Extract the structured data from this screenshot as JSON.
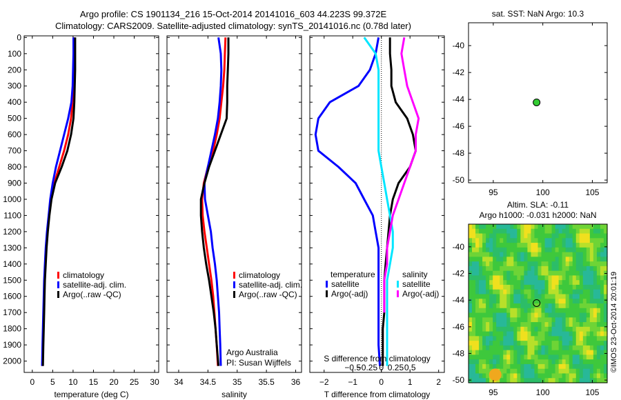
{
  "header": {
    "line1": "Argo profile: CS 1901134_216 15-Oct-2014 20141016_603 44.223S 99.372E",
    "line2": "Climatology: CARS2009. Satellite-adjusted climatology: synTS_20141016.nc (0.78d later)"
  },
  "colors": {
    "climatology": "#ff0000",
    "satellite": "#0000ff",
    "argo": "#000000",
    "sat_salinity": "#00e6ff",
    "argo_adj_salinity": "#ff00ff"
  },
  "chart_data": [
    {
      "type": "line",
      "id": "temperature",
      "xlabel": "temperature (deg C)",
      "xlim": [
        -2,
        31
      ],
      "ylim": [
        2070,
        -10
      ],
      "xticks": [
        0,
        5,
        10,
        15,
        20,
        25,
        30
      ],
      "xtick_labels": [
        "0",
        "5",
        "10",
        "15",
        "20",
        "25",
        "30"
      ],
      "yticks": [
        0,
        100,
        200,
        300,
        400,
        500,
        600,
        700,
        800,
        900,
        1000,
        1100,
        1200,
        1300,
        1400,
        1500,
        1600,
        1700,
        1800,
        1900,
        2000
      ],
      "legend": [
        "climatology",
        "satellite-adj. clim.",
        "Argo(..raw -QC)"
      ],
      "series": [
        {
          "name": "climatology",
          "color": "#ff0000",
          "x": [
            10.2,
            10.2,
            10.1,
            10,
            9.9,
            9.5,
            8.8,
            7.8,
            6.6,
            5.4,
            4.6,
            4.1,
            3.7,
            3.4,
            3.2,
            3,
            2.9,
            2.8,
            2.7,
            2.6,
            2.5
          ],
          "y": [
            0,
            100,
            200,
            300,
            400,
            500,
            600,
            700,
            800,
            900,
            1000,
            1100,
            1200,
            1300,
            1400,
            1500,
            1600,
            1700,
            1800,
            1900,
            2030
          ]
        },
        {
          "name": "satellite-adj. clim.",
          "color": "#0000ff",
          "x": [
            10.1,
            10.1,
            10,
            9.9,
            9.6,
            8.8,
            7.8,
            6.8,
            5.8,
            5,
            4.4,
            4,
            3.6,
            3.3,
            3.1,
            2.9,
            2.8,
            2.7,
            2.6,
            2.5,
            2.4
          ],
          "y": [
            0,
            100,
            200,
            300,
            400,
            500,
            600,
            700,
            800,
            900,
            1000,
            1100,
            1200,
            1300,
            1400,
            1500,
            1600,
            1700,
            1800,
            1900,
            2030
          ]
        },
        {
          "name": "Argo(..raw -QC)",
          "color": "#000000",
          "x": [
            10.5,
            10.5,
            10.5,
            10.4,
            10.3,
            10.1,
            9.5,
            8.6,
            7.2,
            5.6,
            4.7,
            4.2,
            3.8,
            3.5,
            3.3,
            3.1,
            3,
            2.9,
            2.8,
            2.7,
            2.6
          ],
          "y": [
            0,
            100,
            200,
            300,
            400,
            500,
            600,
            700,
            800,
            900,
            1000,
            1100,
            1200,
            1300,
            1400,
            1500,
            1600,
            1700,
            1800,
            1900,
            2030
          ]
        }
      ]
    },
    {
      "type": "line",
      "id": "salinity",
      "xlabel": "salinity",
      "xlim": [
        33.8,
        36.1
      ],
      "ylim": [
        2070,
        -10
      ],
      "xticks": [
        34,
        34.5,
        35,
        35.5,
        36
      ],
      "xtick_labels": [
        "34",
        "34.5",
        "35",
        "35.5",
        "36"
      ],
      "yticks": [
        0,
        100,
        200,
        300,
        400,
        500,
        600,
        700,
        800,
        900,
        1000,
        1100,
        1200,
        1300,
        1400,
        1500,
        1600,
        1700,
        1800,
        1900,
        2000
      ],
      "legend": [
        "climatology",
        "satellite-adj. clim.",
        "Argo(..raw -QC)"
      ],
      "annotation": [
        "Argo Australia",
        "PI: Susan Wijffels"
      ],
      "series": [
        {
          "name": "climatology",
          "color": "#ff0000",
          "x": [
            34.8,
            34.79,
            34.78,
            34.76,
            34.73,
            34.7,
            34.65,
            34.59,
            34.5,
            34.43,
            34.4,
            34.41,
            34.44,
            34.48,
            34.52,
            34.56,
            34.59,
            34.61,
            34.63,
            34.65,
            34.67
          ],
          "y": [
            0,
            100,
            200,
            300,
            400,
            500,
            600,
            700,
            800,
            900,
            1000,
            1100,
            1200,
            1300,
            1400,
            1500,
            1600,
            1700,
            1800,
            1900,
            2030
          ]
        },
        {
          "name": "satellite-adj. clim.",
          "color": "#0000ff",
          "x": [
            34.68,
            34.72,
            34.73,
            34.72,
            34.7,
            34.67,
            34.62,
            34.56,
            34.5,
            34.44,
            34.45,
            34.5,
            34.55,
            34.58,
            34.62,
            34.65,
            34.67,
            34.69,
            34.7,
            34.71,
            34.72
          ],
          "y": [
            0,
            100,
            200,
            300,
            400,
            500,
            600,
            700,
            800,
            900,
            1000,
            1100,
            1200,
            1300,
            1400,
            1500,
            1600,
            1700,
            1800,
            1900,
            2030
          ]
        },
        {
          "name": "Argo(..raw -QC)",
          "color": "#000000",
          "x": [
            34.85,
            34.85,
            34.84,
            34.83,
            34.83,
            34.82,
            34.72,
            34.62,
            34.52,
            34.44,
            34.38,
            34.38,
            34.4,
            34.43,
            34.47,
            34.52,
            34.56,
            34.6,
            34.63,
            34.65,
            34.68
          ],
          "y": [
            0,
            100,
            200,
            300,
            400,
            500,
            600,
            700,
            800,
            900,
            1000,
            1100,
            1200,
            1300,
            1400,
            1500,
            1600,
            1700,
            1800,
            1900,
            2030
          ]
        }
      ]
    },
    {
      "type": "line",
      "id": "differences",
      "xlabel": "T difference from climatology",
      "xlabel_top": "S difference from climatology",
      "xlim": [
        -2.5,
        2.2
      ],
      "ylim": [
        2070,
        -10
      ],
      "xticks": [
        -2,
        -1,
        0,
        1,
        2
      ],
      "xtick_labels": [
        "−2",
        "−1",
        "0",
        "1",
        "2"
      ],
      "sticks": [
        -0.5,
        -0.25,
        0,
        0.25,
        0.5
      ],
      "stick_labels": [
        "−0.5",
        "−0.25",
        "0",
        "0.25",
        "0.5"
      ],
      "yticks": [
        0,
        100,
        200,
        300,
        400,
        500,
        600,
        700,
        800,
        900,
        1000,
        1100,
        1200,
        1300,
        1400,
        1500,
        1600,
        1700,
        1800,
        1900,
        2000
      ],
      "legend_titles": [
        "temperature",
        "salinity"
      ],
      "legend": [
        "satellite",
        "Argo(-adj)",
        "satellite",
        "Argo(-adj)"
      ],
      "series": [
        {
          "name": "temperature satellite",
          "color": "#0000ff",
          "x": [
            -0.1,
            -0.2,
            -0.4,
            -0.8,
            -1.8,
            -2.2,
            -2.3,
            -2.2,
            -1.5,
            -0.9,
            -0.6,
            -0.3,
            -0.2,
            -0.1,
            -0.1,
            -0.1,
            -0.1,
            -0.1,
            -0.1,
            -0.1,
            -0.05
          ],
          "y": [
            0,
            100,
            200,
            300,
            400,
            500,
            600,
            700,
            800,
            900,
            1000,
            1100,
            1200,
            1300,
            1400,
            1500,
            1600,
            1700,
            1800,
            1900,
            2030
          ]
        },
        {
          "name": "temperature Argo(-adj)",
          "color": "#000000",
          "x": [
            0.3,
            0.3,
            0.35,
            0.35,
            0.5,
            0.9,
            1.1,
            1.2,
            1.0,
            0.6,
            0.4,
            0.3,
            0.25,
            0.2,
            0.15,
            0.1,
            0.1,
            0.1,
            0.05,
            0.05,
            0.05
          ],
          "y": [
            0,
            100,
            200,
            300,
            400,
            500,
            600,
            700,
            800,
            900,
            1000,
            1100,
            1200,
            1300,
            1400,
            1500,
            1600,
            1700,
            1800,
            1900,
            2030
          ]
        },
        {
          "name": "salinity satellite",
          "color": "#00e6ff",
          "x": [
            -0.3,
            -0.1,
            -0.05,
            -0.05,
            -0.05,
            -0.05,
            -0.05,
            -0.05,
            0,
            0.05,
            0.1,
            0.15,
            0.2,
            0.2,
            0.15,
            0.1,
            0.1,
            0.1,
            0.1,
            0.1,
            0.1
          ],
          "y": [
            0,
            100,
            200,
            300,
            400,
            500,
            600,
            700,
            800,
            900,
            1000,
            1100,
            1200,
            1300,
            1400,
            1500,
            1600,
            1700,
            1800,
            1900,
            2030
          ]
        },
        {
          "name": "salinity Argo(-adj)",
          "color": "#ff00ff",
          "x": [
            0.4,
            0.35,
            0.4,
            0.45,
            0.55,
            0.65,
            0.6,
            0.6,
            0.5,
            0.4,
            0.3,
            0.2,
            0.15,
            0.1,
            0.1,
            0.05,
            0.05,
            0.05
          ],
          "y": [
            0,
            100,
            200,
            300,
            400,
            500,
            600,
            700,
            800,
            900,
            1000,
            1100,
            1200,
            1300,
            1400,
            1500,
            1600,
            1700
          ],
          "cap_text": ""
        }
      ]
    },
    {
      "type": "scatter",
      "id": "location",
      "title": "sat. SST: NaN Argo: 10.3",
      "xlim": [
        92.5,
        106.5
      ],
      "ylim": [
        -50.2,
        -38.3
      ],
      "xticks": [
        95,
        100,
        105
      ],
      "yticks": [
        -40,
        -42,
        -44,
        -46,
        -48,
        -50
      ],
      "points": [
        {
          "x": 99.372,
          "y": -44.223,
          "color": "#33cc33"
        }
      ]
    },
    {
      "type": "heatmap",
      "id": "sla",
      "title": [
        "Altim. SLA: -0.11",
        "Argo h1000: -0.031 h2000: NaN"
      ],
      "xlim": [
        92.5,
        106.5
      ],
      "ylim": [
        -50.2,
        -38.3
      ],
      "xticks": [
        95,
        100,
        105
      ],
      "yticks": [
        -40,
        -42,
        -44,
        -46,
        -48,
        -50
      ],
      "marker": {
        "x": 99.372,
        "y": -44.223
      },
      "side_text": "©IMOS 23-Oct-2014 20:01:19"
    }
  ]
}
